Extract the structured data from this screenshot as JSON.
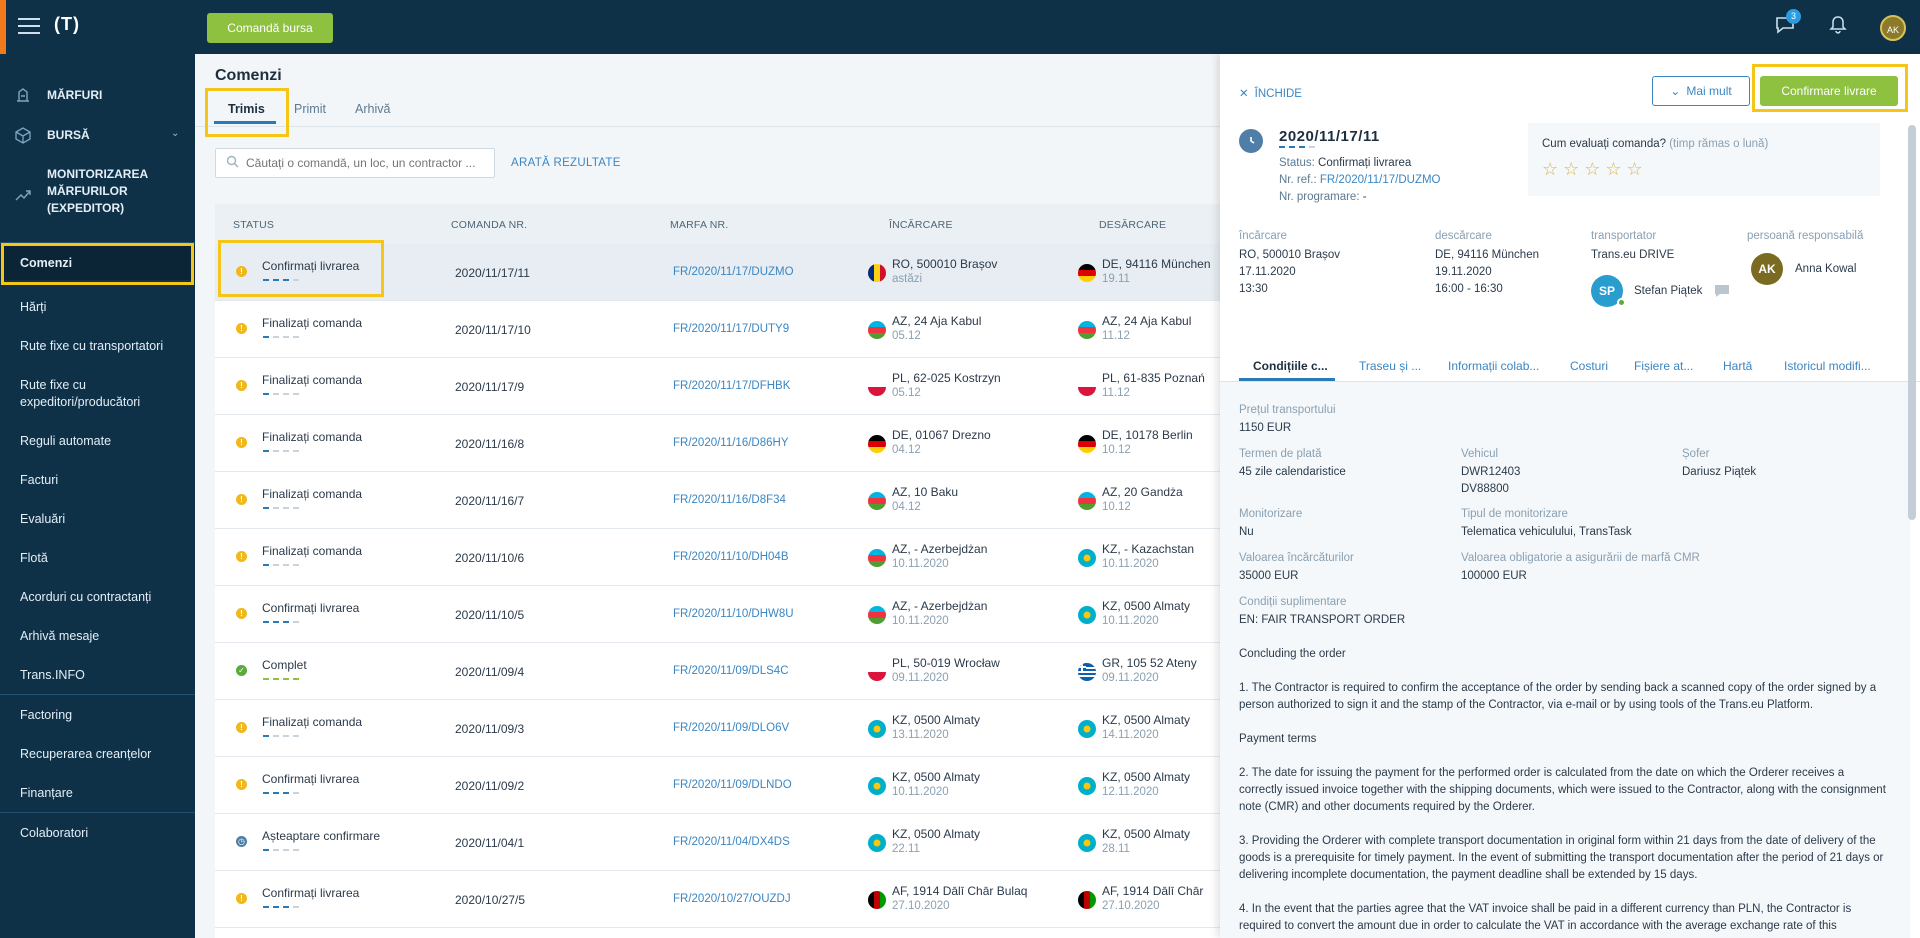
{
  "topbar": {
    "logo": "(T)",
    "cta_label": "Comandă bursa",
    "messages_badge": "3",
    "user_initials": "AK"
  },
  "sidebar": {
    "main": [
      {
        "label": "MĂRFURI"
      },
      {
        "label": "BURSĂ"
      },
      {
        "label": "MONITORIZAREA MĂRFURILOR (EXPEDITOR)"
      }
    ],
    "items": [
      {
        "label": "Comenzi"
      },
      {
        "label": "Hărți"
      },
      {
        "label": "Rute fixe cu transportatori"
      },
      {
        "label": "Rute fixe cu expeditori/producători"
      },
      {
        "label": "Reguli automate"
      },
      {
        "label": "Facturi"
      },
      {
        "label": "Evaluări"
      },
      {
        "label": "Flotă"
      },
      {
        "label": "Acorduri cu contractanți"
      },
      {
        "label": "Arhivă mesaje"
      },
      {
        "label": "Trans.INFO"
      },
      {
        "label": "Factoring"
      },
      {
        "label": "Recuperarea creanțelor"
      },
      {
        "label": "Finanțare"
      },
      {
        "label": "Colaboratori"
      }
    ]
  },
  "orders_page": {
    "title": "Comenzi",
    "tabs": [
      "Trimis",
      "Primit",
      "Arhivă"
    ],
    "search_placeholder": "Căutați o comandă, un loc, un contractor ...",
    "show_results": "ARATĂ REZULTATE",
    "columns": [
      "STATUS",
      "COMANDA NR.",
      "MARFA NR.",
      "ÎNCĂRCARE",
      "DESĂRCARE"
    ],
    "rows": [
      {
        "status": "Confirmați livrarea",
        "order": "2020/11/17/11",
        "cargo": "FR/2020/11/17/DUZMO",
        "load": "RO, 500010 Brașov",
        "load_date": "astăzi",
        "unload": "DE, 94116 München",
        "unload_date": "19.11"
      },
      {
        "status": "Finalizați comanda",
        "order": "2020/11/17/10",
        "cargo": "FR/2020/11/17/DUTY9",
        "load": "AZ, 24 Aja Kabul",
        "load_date": "05.12",
        "unload": "AZ, 24 Aja Kabul",
        "unload_date": "11.12"
      },
      {
        "status": "Finalizați comanda",
        "order": "2020/11/17/9",
        "cargo": "FR/2020/11/17/DFHBK",
        "load": "PL, 62-025 Kostrzyn",
        "load_date": "05.12",
        "unload": "PL, 61-835 Poznań",
        "unload_date": "11.12"
      },
      {
        "status": "Finalizați comanda",
        "order": "2020/11/16/8",
        "cargo": "FR/2020/11/16/D86HY",
        "load": "DE, 01067 Drezno",
        "load_date": "04.12",
        "unload": "DE, 10178 Berlin",
        "unload_date": "10.12"
      },
      {
        "status": "Finalizați comanda",
        "order": "2020/11/16/7",
        "cargo": "FR/2020/11/16/D8F34",
        "load": "AZ, 10 Baku",
        "load_date": "04.12",
        "unload": "AZ, 20 Gandża",
        "unload_date": "10.12"
      },
      {
        "status": "Finalizați comanda",
        "order": "2020/11/10/6",
        "cargo": "FR/2020/11/10/DH04B",
        "load": "AZ, - Azerbejdżan",
        "load_date": "10.11.2020",
        "unload": "KZ, - Kazachstan",
        "unload_date": "10.11.2020"
      },
      {
        "status": "Confirmați livrarea",
        "order": "2020/11/10/5",
        "cargo": "FR/2020/11/10/DHW8U",
        "load": "AZ, - Azerbejdżan",
        "load_date": "10.11.2020",
        "unload": "KZ, 0500 Almaty",
        "unload_date": "10.11.2020"
      },
      {
        "status": "Complet",
        "order": "2020/11/09/4",
        "cargo": "FR/2020/11/09/DLS4C",
        "load": "PL, 50-019 Wrocław",
        "load_date": "09.11.2020",
        "unload": "GR, 105 52 Ateny",
        "unload_date": "09.11.2020"
      },
      {
        "status": "Finalizați comanda",
        "order": "2020/11/09/3",
        "cargo": "FR/2020/11/09/DLO6V",
        "load": "KZ, 0500 Almaty",
        "load_date": "13.11.2020",
        "unload": "KZ, 0500 Almaty",
        "unload_date": "14.11.2020"
      },
      {
        "status": "Confirmați livrarea",
        "order": "2020/11/09/2",
        "cargo": "FR/2020/11/09/DLNDO",
        "load": "KZ, 0500 Almaty",
        "load_date": "10.11.2020",
        "unload": "KZ, 0500 Almaty",
        "unload_date": "12.11.2020"
      },
      {
        "status": "Așteaptare confirmare",
        "order": "2020/11/04/1",
        "cargo": "FR/2020/11/04/DX4DS",
        "load": "KZ, 0500 Almaty",
        "load_date": "22.11",
        "unload": "KZ, 0500 Almaty",
        "unload_date": "28.11"
      },
      {
        "status": "Confirmați livrarea",
        "order": "2020/10/27/5",
        "cargo": "FR/2020/10/27/OUZDJ",
        "load": "AF, 1914 Dālī Chār Bulaq",
        "load_date": "27.10.2020",
        "unload": "AF, 1914 Dālī Chār",
        "unload_date": "27.10.2020"
      }
    ]
  },
  "panel": {
    "close_label": "ÎNCHIDE",
    "more_label": "Mai mult",
    "confirm_label": "Confirmare livrare",
    "order_no": "2020/11/17/11",
    "status_label": "Status:",
    "status_value": "Confirmați livrarea",
    "ref_label": "Nr. ref.:",
    "ref_value": "FR/2020/11/17/DUZMO",
    "schedule_label": "Nr. programare:",
    "schedule_value": "-",
    "rating_question": "Cum evaluați comanda?",
    "rating_hint": "(timp rămas o lună)",
    "rating_stars": "☆☆☆☆☆",
    "loading_h": "încărcare",
    "loading_lines": [
      "RO, 500010 Brașov",
      "17.11.2020",
      "13:30"
    ],
    "unloading_h": "descărcare",
    "unloading_lines": [
      "DE, 94116 München",
      "19.11.2020",
      "16:00 - 16:30"
    ],
    "carrier_h": "transportator",
    "carrier_name": "Trans.eu DRIVE",
    "driver_initials": "SP",
    "driver_name": "Stefan Piątek",
    "responsible_h": "persoană responsabilă",
    "responsible_initials": "AK",
    "responsible_name": "Anna Kowal",
    "tabs": [
      "Condițiile c...",
      "Traseu și ...",
      "Informații colab...",
      "Costuri",
      "Fișiere at...",
      "Hartă",
      "Istoricul modifi..."
    ],
    "fields": {
      "price_l": "Prețul transportului",
      "price_v": "1150 EUR",
      "term_l": "Termen de plată",
      "term_v": "45 zile calendaristice",
      "vehicle_l": "Vehicul",
      "vehicle_v1": "DWR12403",
      "vehicle_v2": "DV88800",
      "driver_l": "Șofer",
      "driver_v": "Dariusz Piątek",
      "monitor_l": "Monitorizare",
      "monitor_v": "Nu",
      "monitor_type_l": "Tipul de monitorizare",
      "monitor_type_v": "Telematica vehiculului, TransTask",
      "goods_l": "Valoarea încărcăturilor",
      "goods_v": "35000 EUR",
      "cmr_l": "Valoarea obligatorie a asigurării de marfă CMR",
      "cmr_v": "100000 EUR",
      "extra_l": "Condiții suplimentare",
      "extra_v": "EN: FAIR TRANSPORT ORDER"
    },
    "paragraphs": [
      "Concluding the order",
      "1. The Contractor is required to confirm the acceptance of the order by sending back a scanned copy of the order signed by a person authorized to sign it and the stamp of the Contractor, via e-mail or by using tools of the Trans.eu Platform.",
      "Payment terms",
      "2. The date for issuing the payment for the performed order is calculated from the date on which the Orderer receives a correctly issued invoice together with the shipping documents, which were issued to the Contractor, along with the consignment note (CMR) and other documents required by the Orderer.",
      "3. Providing the Orderer with complete transport documentation in original form within 21 days from the date of delivery of the goods is a prerequisite for timely payment. In the event of submitting the transport documentation after the period of 21 days or delivering incomplete documentation, the payment deadline shall be extended by 15 days.",
      "4. In the event that the parties agree that the VAT invoice shall be paid in a different currency than PLN, the Contractor is required to convert the amount due in order to calculate the VAT in accordance with the average exchange rate of this"
    ]
  },
  "colors": {
    "navy": "#0f3148",
    "green": "#8dc13f",
    "link_blue": "#3b86c2",
    "highlight": "#f5c518",
    "warning": "#f0b81a"
  }
}
